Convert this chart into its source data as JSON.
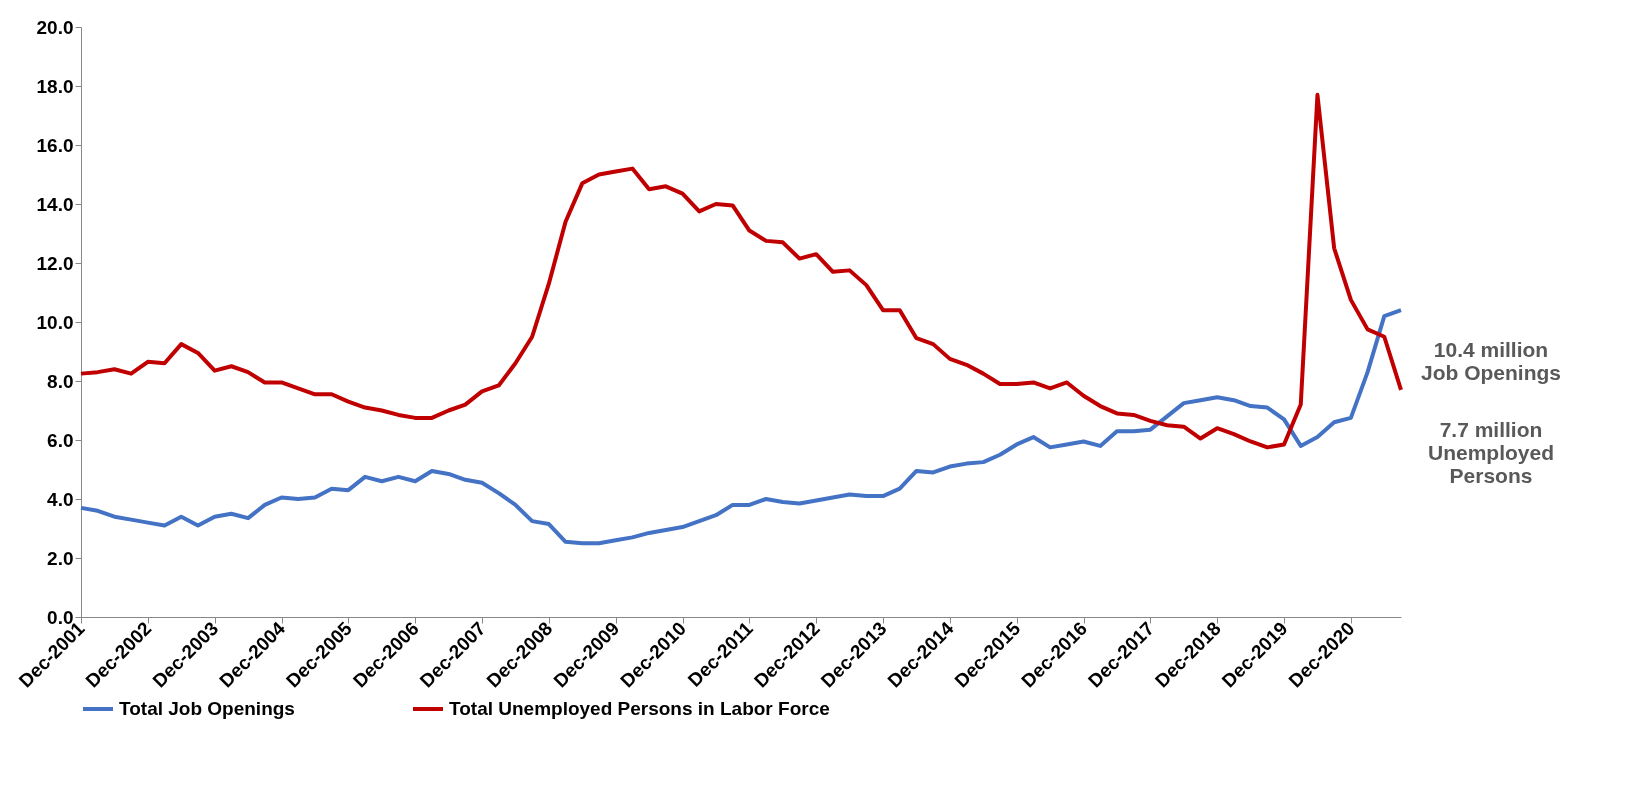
{
  "chart_data": {
    "type": "line",
    "categories": [
      "Dec-2001",
      null,
      null,
      null,
      "Dec-2002",
      null,
      null,
      null,
      "Dec-2003",
      null,
      null,
      null,
      "Dec-2004",
      null,
      null,
      null,
      "Dec-2005",
      null,
      null,
      null,
      "Dec-2006",
      null,
      null,
      null,
      "Dec-2007",
      null,
      null,
      null,
      "Dec-2008",
      null,
      null,
      null,
      "Dec-2009",
      null,
      null,
      null,
      "Dec-2010",
      null,
      null,
      null,
      "Dec-2011",
      null,
      null,
      null,
      "Dec-2012",
      null,
      null,
      null,
      "Dec-2013",
      null,
      null,
      null,
      "Dec-2014",
      null,
      null,
      null,
      "Dec-2015",
      null,
      null,
      null,
      "Dec-2016",
      null,
      null,
      null,
      "Dec-2017",
      null,
      null,
      null,
      "Dec-2018",
      null,
      null,
      null,
      "Dec-2019",
      null,
      null,
      null,
      "Dec-2020",
      null,
      null,
      null
    ],
    "series": [
      {
        "name": "Total Job Openings",
        "color": "#4472c4",
        "values": [
          3.7,
          3.6,
          3.4,
          3.3,
          3.2,
          3.1,
          3.4,
          3.1,
          3.4,
          3.5,
          3.35,
          3.8,
          4.05,
          4.0,
          4.05,
          4.35,
          4.3,
          4.75,
          4.6,
          4.75,
          4.6,
          4.95,
          4.85,
          4.65,
          4.55,
          4.2,
          3.8,
          3.25,
          3.15,
          2.55,
          2.5,
          2.5,
          2.6,
          2.7,
          2.85,
          2.95,
          3.05,
          3.25,
          3.45,
          3.8,
          3.8,
          4.0,
          3.9,
          3.85,
          3.95,
          4.05,
          4.15,
          4.1,
          4.1,
          4.35,
          4.95,
          4.9,
          5.1,
          5.2,
          5.25,
          5.5,
          5.85,
          6.1,
          5.75,
          5.85,
          5.95,
          5.8,
          6.3,
          6.3,
          6.35,
          6.8,
          7.25,
          7.35,
          7.45,
          7.35,
          7.15,
          7.1,
          6.7,
          5.8,
          6.1,
          6.6,
          6.75,
          8.3,
          10.2,
          10.4
        ]
      },
      {
        "name": "Total Unemployed Persons in Labor Force",
        "color": "#c00000",
        "values": [
          8.25,
          8.3,
          8.4,
          8.25,
          8.65,
          8.6,
          9.25,
          8.95,
          8.35,
          8.5,
          8.3,
          7.95,
          7.95,
          7.75,
          7.55,
          7.55,
          7.3,
          7.1,
          7.0,
          6.85,
          6.75,
          6.75,
          7.0,
          7.2,
          7.65,
          7.85,
          8.6,
          9.5,
          11.3,
          13.4,
          14.7,
          15.0,
          15.1,
          15.2,
          14.5,
          14.6,
          14.35,
          13.75,
          14.0,
          13.95,
          13.1,
          12.75,
          12.7,
          12.15,
          12.3,
          11.7,
          11.75,
          11.25,
          10.4,
          10.4,
          9.45,
          9.25,
          8.75,
          8.55,
          8.25,
          7.9,
          7.9,
          7.95,
          7.75,
          7.95,
          7.5,
          7.15,
          6.9,
          6.85,
          6.65,
          6.5,
          6.45,
          6.05,
          6.4,
          6.2,
          5.95,
          5.75,
          5.85,
          7.2,
          17.7,
          12.5,
          10.75,
          9.75,
          9.5,
          7.7
        ]
      }
    ],
    "ylim": [
      0,
      20
    ],
    "yticks": [
      {
        "value": 0,
        "label": "0.0"
      },
      {
        "value": 2,
        "label": "2.0"
      },
      {
        "value": 4,
        "label": "4.0"
      },
      {
        "value": 6,
        "label": "6.0"
      },
      {
        "value": 8,
        "label": "8.0"
      },
      {
        "value": 10,
        "label": "10.0"
      },
      {
        "value": 12,
        "label": "12.0"
      },
      {
        "value": 14,
        "label": "14.0"
      },
      {
        "value": 16,
        "label": "16.0"
      },
      {
        "value": 18,
        "label": "18.0"
      },
      {
        "value": 20,
        "label": "20.0"
      }
    ],
    "annotations": [
      "10.4 million\nJob Openings",
      "7.7 million\nUnemployed\nPersons"
    ],
    "legend": "bottom",
    "grid": false
  }
}
